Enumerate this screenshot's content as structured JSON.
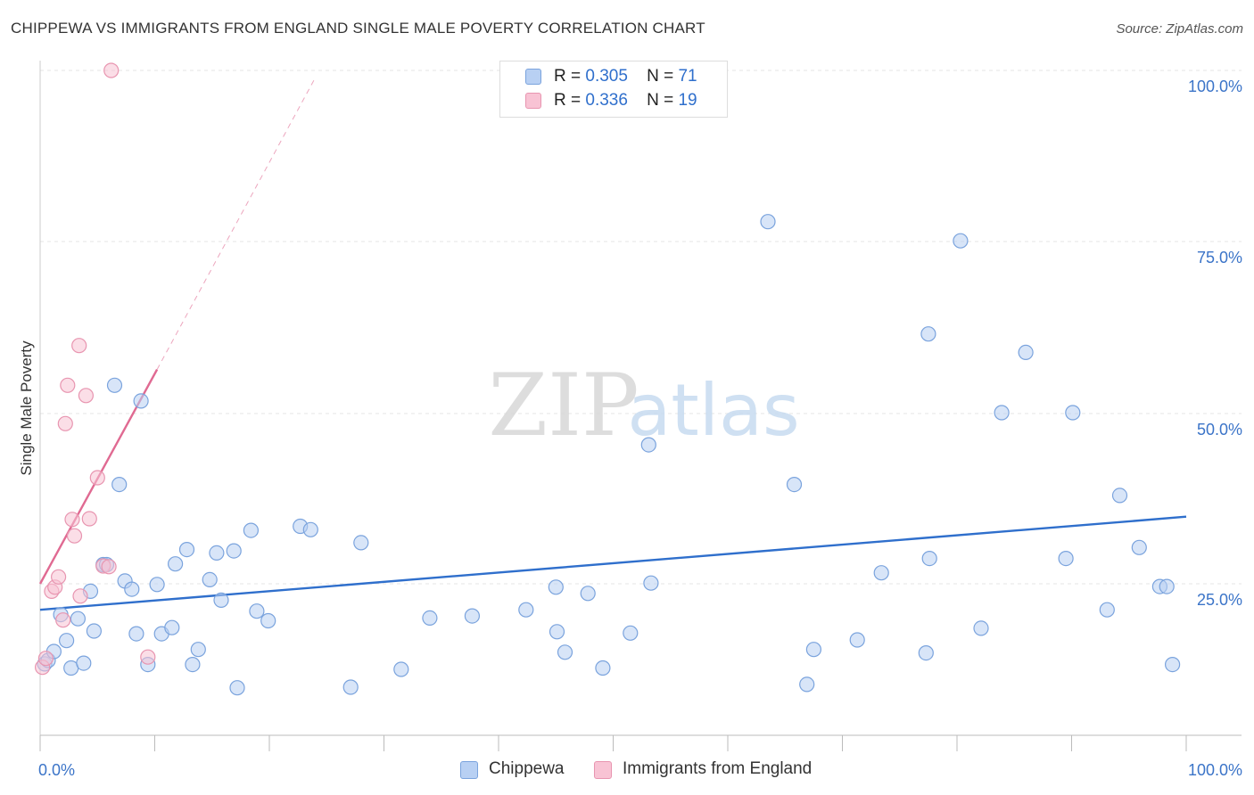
{
  "title": "CHIPPEWA VS IMMIGRANTS FROM ENGLAND SINGLE MALE POVERTY CORRELATION CHART",
  "source": "Source: ZipAtlas.com",
  "watermark": {
    "zip": "ZIP",
    "atlas": "atlas"
  },
  "legend": {
    "r_label": "R =",
    "n_label": "N =",
    "rows": [
      {
        "r": "0.305",
        "n": "71",
        "fill": "#b8d0f3",
        "stroke": "#7aa3dd"
      },
      {
        "r": "0.336",
        "n": "19",
        "fill": "#f8c3d4",
        "stroke": "#e895b0"
      }
    ]
  },
  "bottom_legend": [
    {
      "label": "Chippewa",
      "fill": "#b8d0f3",
      "stroke": "#7aa3dd"
    },
    {
      "label": "Immigrants from England",
      "fill": "#f8c3d4",
      "stroke": "#e895b0"
    }
  ],
  "chart_data": {
    "type": "scatter",
    "title": "CHIPPEWA VS IMMIGRANTS FROM ENGLAND SINGLE MALE POVERTY CORRELATION CHART",
    "xlabel": "",
    "ylabel": "Single Male Poverty",
    "xlim": [
      0,
      100
    ],
    "ylim": [
      0,
      103
    ],
    "x_tick_labels": [
      "0.0%",
      "100.0%"
    ],
    "y_ticks": [
      25,
      50,
      75,
      100
    ],
    "y_tick_labels": [
      "25.0%",
      "50.0%",
      "75.0%",
      "100.0%"
    ],
    "grid": true,
    "series": [
      {
        "name": "Chippewa",
        "color": "#2f6fcc",
        "fill": "#b8d0f3",
        "stroke": "#7aa3dd",
        "trend": {
          "x0": 0,
          "y0": 21.2,
          "x1": 100,
          "y1": 34.8
        },
        "points": [
          [
            0.4,
            13.3
          ],
          [
            0.7,
            13.8
          ],
          [
            1.2,
            15.1
          ],
          [
            1.8,
            20.5
          ],
          [
            2.3,
            16.7
          ],
          [
            2.7,
            12.7
          ],
          [
            3.3,
            19.9
          ],
          [
            3.8,
            13.4
          ],
          [
            4.4,
            23.9
          ],
          [
            4.7,
            18.1
          ],
          [
            5.5,
            27.8
          ],
          [
            5.8,
            27.8
          ],
          [
            6.5,
            54.0
          ],
          [
            6.9,
            39.5
          ],
          [
            7.4,
            25.4
          ],
          [
            8.0,
            24.2
          ],
          [
            8.4,
            17.7
          ],
          [
            8.8,
            51.7
          ],
          [
            9.4,
            13.2
          ],
          [
            10.2,
            24.9
          ],
          [
            10.6,
            17.7
          ],
          [
            11.5,
            18.6
          ],
          [
            11.8,
            27.9
          ],
          [
            12.8,
            30.0
          ],
          [
            13.3,
            13.2
          ],
          [
            13.8,
            15.4
          ],
          [
            14.8,
            25.6
          ],
          [
            15.4,
            29.5
          ],
          [
            15.8,
            22.6
          ],
          [
            16.9,
            29.8
          ],
          [
            17.2,
            9.8
          ],
          [
            18.4,
            32.8
          ],
          [
            18.9,
            21.0
          ],
          [
            19.9,
            19.6
          ],
          [
            22.7,
            33.4
          ],
          [
            23.6,
            32.9
          ],
          [
            27.1,
            9.9
          ],
          [
            28.0,
            31.0
          ],
          [
            31.5,
            12.5
          ],
          [
            34.0,
            20.0
          ],
          [
            37.7,
            20.3
          ],
          [
            42.4,
            21.2
          ],
          [
            45.0,
            24.5
          ],
          [
            45.1,
            18.0
          ],
          [
            45.8,
            15.0
          ],
          [
            47.8,
            23.6
          ],
          [
            49.1,
            12.7
          ],
          [
            51.5,
            17.8
          ],
          [
            53.1,
            45.3
          ],
          [
            53.3,
            25.1
          ],
          [
            63.5,
            77.9
          ],
          [
            65.8,
            39.5
          ],
          [
            66.9,
            10.3
          ],
          [
            67.5,
            15.4
          ],
          [
            71.3,
            16.8
          ],
          [
            73.4,
            26.6
          ],
          [
            77.3,
            14.9
          ],
          [
            77.5,
            61.5
          ],
          [
            77.6,
            28.7
          ],
          [
            80.3,
            75.1
          ],
          [
            82.1,
            18.5
          ],
          [
            83.9,
            50.0
          ],
          [
            86.0,
            58.8
          ],
          [
            89.5,
            28.7
          ],
          [
            90.1,
            50.0
          ],
          [
            93.1,
            21.2
          ],
          [
            94.2,
            37.9
          ],
          [
            95.9,
            30.3
          ],
          [
            97.7,
            24.6
          ],
          [
            98.3,
            24.6
          ],
          [
            98.8,
            13.2
          ]
        ]
      },
      {
        "name": "Immigrants from England",
        "color": "#e06a92",
        "fill": "#f8c3d4",
        "stroke": "#e895b0",
        "trend": {
          "x0": 0,
          "y0": 25.0,
          "x1": 10.2,
          "y1": 56.3
        },
        "trend_dashed": {
          "x0": 10.2,
          "y0": 56.3,
          "x1": 23.9,
          "y1": 98.6
        },
        "points": [
          [
            0.2,
            12.8
          ],
          [
            0.5,
            14.1
          ],
          [
            1.0,
            23.9
          ],
          [
            1.3,
            24.5
          ],
          [
            1.6,
            26.0
          ],
          [
            2.0,
            19.7
          ],
          [
            2.2,
            48.4
          ],
          [
            2.4,
            54.0
          ],
          [
            2.8,
            34.4
          ],
          [
            3.0,
            32.0
          ],
          [
            3.4,
            59.8
          ],
          [
            3.5,
            23.2
          ],
          [
            4.0,
            52.5
          ],
          [
            4.3,
            34.5
          ],
          [
            5.0,
            40.5
          ],
          [
            5.5,
            27.6
          ],
          [
            6.0,
            27.5
          ],
          [
            9.4,
            14.3
          ],
          [
            6.2,
            100.0
          ]
        ]
      }
    ]
  }
}
